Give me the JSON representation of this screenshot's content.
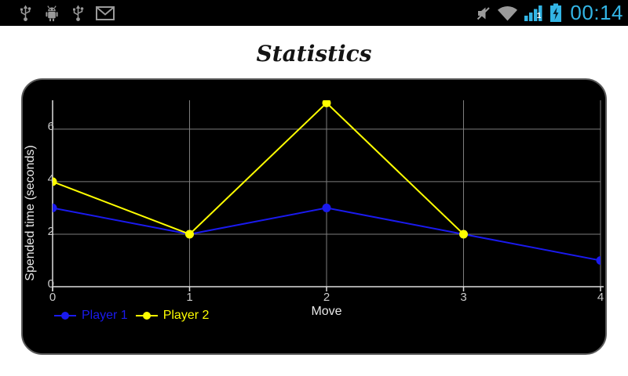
{
  "status_bar": {
    "time": "00:14",
    "accent_color": "#33B5E5",
    "icon_color": "#9a9a9a",
    "left_icons": [
      "usb-icon",
      "adb-debug-icon",
      "usb-icon",
      "gmail-icon"
    ],
    "right_icons": [
      "mute-icon",
      "wifi-icon",
      "signal-strength-icon",
      "battery-charging-icon"
    ],
    "signal_badge": "1"
  },
  "page": {
    "title": "Statistics",
    "background": "#ffffff"
  },
  "chart_data": {
    "type": "line",
    "title": "Statistics",
    "xlabel": "Move",
    "ylabel": "Spended time (seconds)",
    "x_ticks": [
      0,
      1,
      2,
      3,
      4
    ],
    "y_ticks": [
      0,
      2,
      4,
      6
    ],
    "xlim": [
      0,
      4
    ],
    "ylim": [
      0,
      7.1
    ],
    "grid": true,
    "legend_position": "bottom-left",
    "plot_background": "#000000",
    "grid_color": "#7e7e7e",
    "axis_color": "#dddddd",
    "tick_label_color": "#c9c9c9",
    "series": [
      {
        "name": "Player 1",
        "color": "#1a1aee",
        "x": [
          0,
          1,
          2,
          3,
          4
        ],
        "values": [
          3,
          2,
          3,
          2,
          1
        ]
      },
      {
        "name": "Player 2",
        "color": "#ffff00",
        "x": [
          0,
          1,
          2,
          3
        ],
        "values": [
          4,
          2,
          7,
          2
        ]
      }
    ]
  }
}
